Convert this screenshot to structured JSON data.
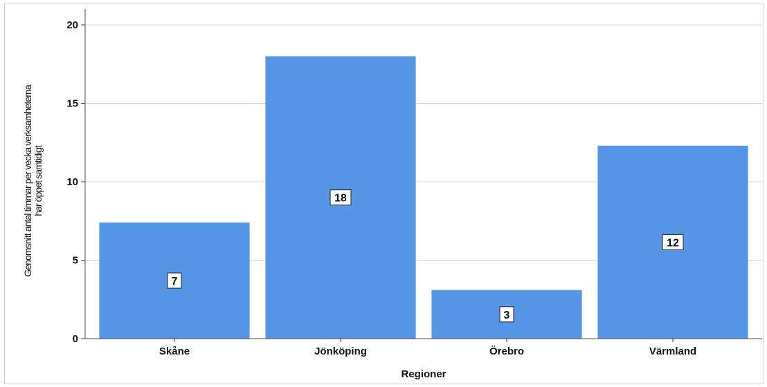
{
  "chart_data": {
    "type": "bar",
    "categories": [
      "Skåne",
      "Jönköping",
      "Örebro",
      "Värmland"
    ],
    "values": [
      7.4,
      18.0,
      3.1,
      12.3
    ],
    "data_labels": [
      "7",
      "18",
      "3",
      "12"
    ],
    "title": "",
    "xlabel": "Regioner",
    "ylabel_lines": [
      "Genomsnitt antal timmar per vecka verksamheterna",
      "har öppet samtidigt"
    ],
    "ylim": [
      0,
      20
    ],
    "yticks": [
      0,
      5,
      10,
      15,
      20
    ],
    "grid": true,
    "legend": "none",
    "colors": {
      "bar": "#5596E6",
      "grid": "#d4d4d4",
      "axis": "#444444"
    }
  }
}
